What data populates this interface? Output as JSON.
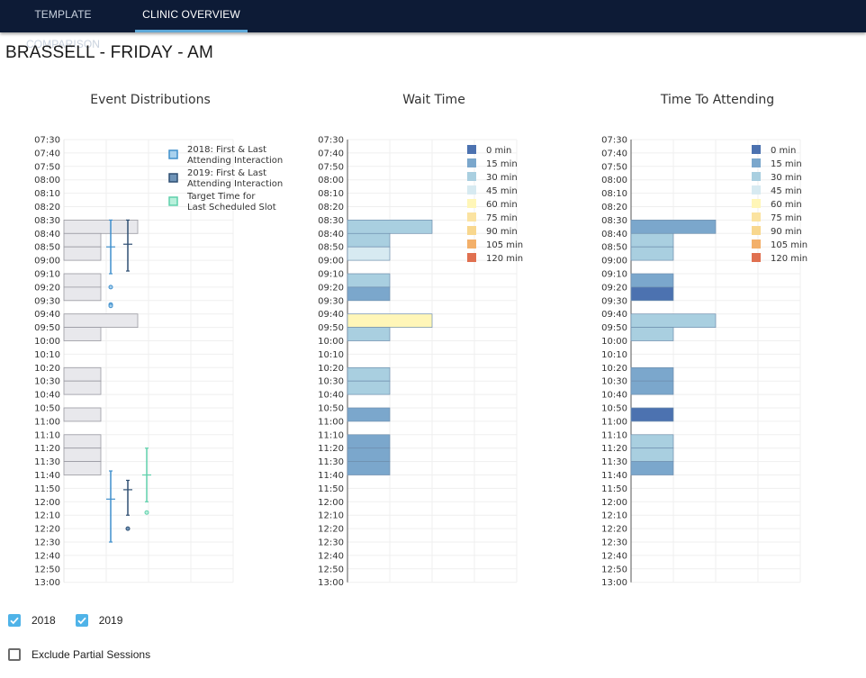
{
  "nav": {
    "tabs": [
      {
        "label": "TEMPLATE COMPARISON",
        "active": false
      },
      {
        "label": "CLINIC OVERVIEW",
        "active": true
      }
    ]
  },
  "page": {
    "title": "BRASSELL - FRIDAY - AM"
  },
  "time_ticks": [
    "07:30",
    "07:40",
    "07:50",
    "08:00",
    "08:10",
    "08:20",
    "08:30",
    "08:40",
    "08:50",
    "09:00",
    "09:10",
    "09:20",
    "09:30",
    "09:40",
    "09:50",
    "10:00",
    "10:10",
    "10:20",
    "10:30",
    "10:40",
    "10:50",
    "11:00",
    "11:10",
    "11:20",
    "11:30",
    "11:40",
    "11:50",
    "12:00",
    "12:10",
    "12:20",
    "12:30",
    "12:40",
    "12:50",
    "13:00"
  ],
  "colors": {
    "c0": "#4c72b0",
    "c15": "#7ba7cc",
    "c30": "#a9cfe0",
    "c45": "#d7eaf1",
    "c60": "#fff6b8",
    "c75": "#fbe3a1",
    "c90": "#f8d78e",
    "c105": "#f3b06a",
    "c120": "#e07050",
    "box2018": "#a8d1ee",
    "edge2018": "#3f8fcc",
    "box2019": "#6f94b8",
    "edge2019": "#2f4f72",
    "boxTarget": "#b9f0dc",
    "edgeTarget": "#5fd0ab",
    "slotFill": "#e8e8ec",
    "slotEdge": "#9a9aa2"
  },
  "chart_data": [
    {
      "type": "boxplot",
      "title": "Event Distributions",
      "y_range": [
        "07:30",
        "13:00"
      ],
      "legend": [
        {
          "line1": "2018: First & Last",
          "line2": "Attending Interaction",
          "kind": "2018"
        },
        {
          "line1": "2019: First & Last",
          "line2": "Attending Interaction",
          "kind": "2019"
        },
        {
          "line1": "Target Time for",
          "line2": "Last Scheduled Slot",
          "kind": "target"
        }
      ],
      "scheduled_slots": [
        {
          "start": "08:30",
          "end": "08:40",
          "width_units": 2
        },
        {
          "start": "08:40",
          "end": "08:50",
          "width_units": 1
        },
        {
          "start": "08:50",
          "end": "09:00",
          "width_units": 1
        },
        {
          "start": "09:10",
          "end": "09:20",
          "width_units": 1
        },
        {
          "start": "09:20",
          "end": "09:30",
          "width_units": 1
        },
        {
          "start": "09:40",
          "end": "09:50",
          "width_units": 2
        },
        {
          "start": "09:50",
          "end": "10:00",
          "width_units": 1
        },
        {
          "start": "10:20",
          "end": "10:30",
          "width_units": 1
        },
        {
          "start": "10:30",
          "end": "10:40",
          "width_units": 1
        },
        {
          "start": "10:50",
          "end": "11:00",
          "width_units": 1
        },
        {
          "start": "11:10",
          "end": "11:20",
          "width_units": 1
        },
        {
          "start": "11:20",
          "end": "11:30",
          "width_units": 1
        },
        {
          "start": "11:30",
          "end": "11:40",
          "width_units": 1
        }
      ],
      "boxes": [
        {
          "series": "2018",
          "group": "first",
          "whisker_low": "08:30",
          "q1": "08:46",
          "median": "08:50",
          "q3": "08:54",
          "whisker_high": "09:10",
          "outliers": [
            "09:20",
            "09:33",
            "09:34"
          ]
        },
        {
          "series": "2019",
          "group": "first",
          "whisker_low": "08:30",
          "q1": "08:43",
          "median": "08:48",
          "q3": "08:50",
          "whisker_high": "09:08",
          "outliers": []
        },
        {
          "series": "2018",
          "group": "last",
          "whisker_low": "11:37",
          "q1": "11:50",
          "median": "11:58",
          "q3": "12:09",
          "whisker_high": "12:30",
          "outliers": []
        },
        {
          "series": "2019",
          "group": "last",
          "whisker_low": "11:44",
          "q1": "11:47",
          "median": "11:51",
          "q3": "11:53",
          "whisker_high": "12:10",
          "outliers": [
            "12:20"
          ]
        },
        {
          "series": "target",
          "group": "target",
          "whisker_low": "11:20",
          "q1": "11:36",
          "median": "11:40",
          "q3": "11:43",
          "whisker_high": "12:00",
          "outliers": [
            "12:08"
          ]
        }
      ]
    },
    {
      "type": "bar",
      "title": "Wait Time",
      "y_range": [
        "07:30",
        "13:00"
      ],
      "legend": [
        {
          "label": "0 min",
          "color_key": "c0"
        },
        {
          "label": "15 min",
          "color_key": "c15"
        },
        {
          "label": "30 min",
          "color_key": "c30"
        },
        {
          "label": "45 min",
          "color_key": "c45"
        },
        {
          "label": "60 min",
          "color_key": "c60"
        },
        {
          "label": "75 min",
          "color_key": "c75"
        },
        {
          "label": "90 min",
          "color_key": "c90"
        },
        {
          "label": "105 min",
          "color_key": "c105"
        },
        {
          "label": "120 min",
          "color_key": "c120"
        }
      ],
      "slots": [
        {
          "start": "08:30",
          "end": "08:40",
          "width_units": 2,
          "color_key": "c30"
        },
        {
          "start": "08:40",
          "end": "08:50",
          "width_units": 1,
          "color_key": "c30"
        },
        {
          "start": "08:50",
          "end": "09:00",
          "width_units": 1,
          "color_key": "c45"
        },
        {
          "start": "09:10",
          "end": "09:20",
          "width_units": 1,
          "color_key": "c30"
        },
        {
          "start": "09:20",
          "end": "09:30",
          "width_units": 1,
          "color_key": "c15"
        },
        {
          "start": "09:40",
          "end": "09:50",
          "width_units": 2,
          "color_key": "c60"
        },
        {
          "start": "09:50",
          "end": "10:00",
          "width_units": 1,
          "color_key": "c30"
        },
        {
          "start": "10:20",
          "end": "10:30",
          "width_units": 1,
          "color_key": "c30"
        },
        {
          "start": "10:30",
          "end": "10:40",
          "width_units": 1,
          "color_key": "c30"
        },
        {
          "start": "10:50",
          "end": "11:00",
          "width_units": 1,
          "color_key": "c15"
        },
        {
          "start": "11:10",
          "end": "11:20",
          "width_units": 1,
          "color_key": "c15"
        },
        {
          "start": "11:20",
          "end": "11:30",
          "width_units": 1,
          "color_key": "c15"
        },
        {
          "start": "11:30",
          "end": "11:40",
          "width_units": 1,
          "color_key": "c15"
        }
      ]
    },
    {
      "type": "bar",
      "title": "Time To Attending",
      "y_range": [
        "07:30",
        "13:00"
      ],
      "legend": [
        {
          "label": "0 min",
          "color_key": "c0"
        },
        {
          "label": "15 min",
          "color_key": "c15"
        },
        {
          "label": "30 min",
          "color_key": "c30"
        },
        {
          "label": "45 min",
          "color_key": "c45"
        },
        {
          "label": "60 min",
          "color_key": "c60"
        },
        {
          "label": "75 min",
          "color_key": "c75"
        },
        {
          "label": "90 min",
          "color_key": "c90"
        },
        {
          "label": "105 min",
          "color_key": "c105"
        },
        {
          "label": "120 min",
          "color_key": "c120"
        }
      ],
      "slots": [
        {
          "start": "08:30",
          "end": "08:40",
          "width_units": 2,
          "color_key": "c15"
        },
        {
          "start": "08:40",
          "end": "08:50",
          "width_units": 1,
          "color_key": "c30"
        },
        {
          "start": "08:50",
          "end": "09:00",
          "width_units": 1,
          "color_key": "c30"
        },
        {
          "start": "09:10",
          "end": "09:20",
          "width_units": 1,
          "color_key": "c15"
        },
        {
          "start": "09:20",
          "end": "09:30",
          "width_units": 1,
          "color_key": "c0"
        },
        {
          "start": "09:40",
          "end": "09:50",
          "width_units": 2,
          "color_key": "c30"
        },
        {
          "start": "09:50",
          "end": "10:00",
          "width_units": 1,
          "color_key": "c30"
        },
        {
          "start": "10:20",
          "end": "10:30",
          "width_units": 1,
          "color_key": "c15"
        },
        {
          "start": "10:30",
          "end": "10:40",
          "width_units": 1,
          "color_key": "c15"
        },
        {
          "start": "10:50",
          "end": "11:00",
          "width_units": 1,
          "color_key": "c0"
        },
        {
          "start": "11:10",
          "end": "11:20",
          "width_units": 1,
          "color_key": "c30"
        },
        {
          "start": "11:20",
          "end": "11:30",
          "width_units": 1,
          "color_key": "c30"
        },
        {
          "start": "11:30",
          "end": "11:40",
          "width_units": 1,
          "color_key": "c15"
        }
      ]
    }
  ],
  "filters": {
    "year_2018": {
      "label": "2018",
      "checked": true
    },
    "year_2019": {
      "label": "2019",
      "checked": true
    },
    "exclude_partial": {
      "label": "Exclude Partial Sessions",
      "checked": false
    }
  }
}
